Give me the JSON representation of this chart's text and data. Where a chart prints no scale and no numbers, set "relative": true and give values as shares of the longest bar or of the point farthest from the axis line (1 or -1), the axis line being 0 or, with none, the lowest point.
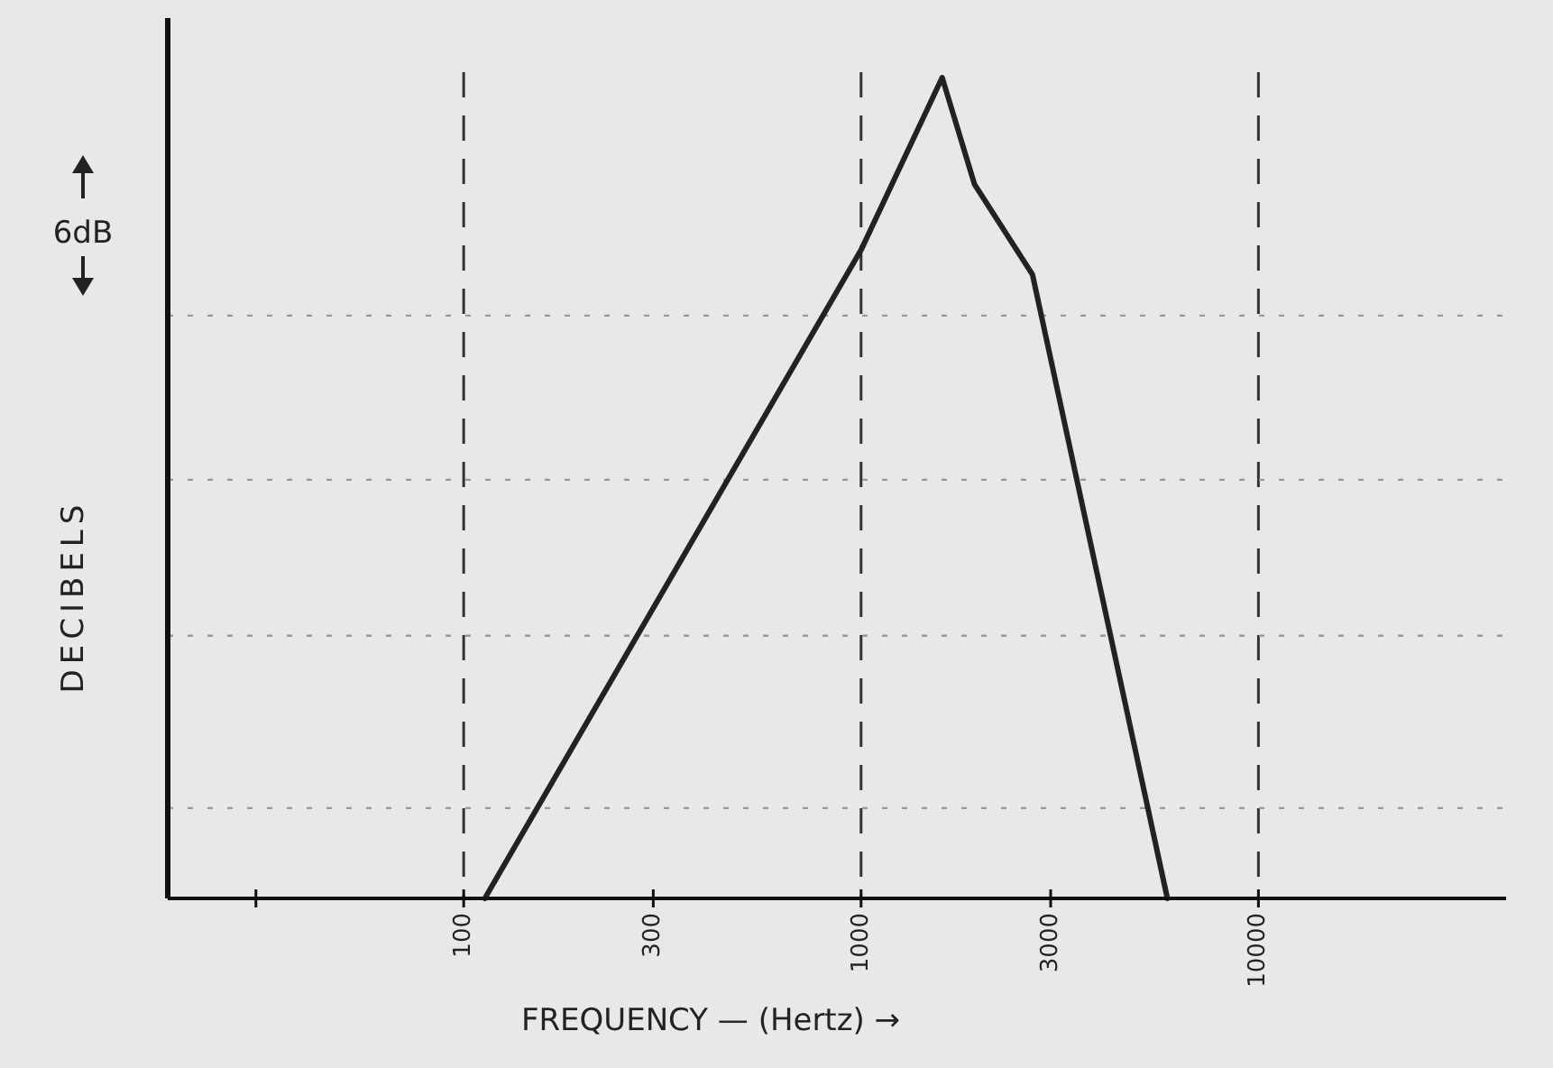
{
  "chart_data": {
    "type": "line",
    "relative": true,
    "log": "x",
    "xlabel": "FREQUENCY — (Hertz) →",
    "ylabel": "DECIBELS",
    "annotations": [
      "6dB"
    ],
    "xlim": [
      18,
      42000
    ],
    "xticks": [
      {
        "value": 30,
        "label": null
      },
      100,
      300,
      1000,
      3000,
      10000
    ],
    "x": [
      113,
      1000,
      1600,
      1930,
      2700,
      5900
    ],
    "series": [
      {
        "color": "#222222",
        "values": [
          0,
          0.79,
          1,
          0.87,
          0.76,
          0
        ]
      }
    ],
    "ref_lines": [
      {
        "axis": "x",
        "value": 100,
        "line_style": "dashed",
        "color": "#333333"
      },
      {
        "axis": "x",
        "value": 1000,
        "line_style": "dashed",
        "color": "#333333"
      },
      {
        "axis": "x",
        "value": 10000,
        "line_style": "dashed",
        "color": "#333333"
      },
      {
        "axis": "y",
        "value": 0.71,
        "line_style": "dotted",
        "color": "#999999"
      },
      {
        "axis": "y",
        "value": 0.51,
        "line_style": "dotted",
        "color": "#999999"
      },
      {
        "axis": "y",
        "value": 0.32,
        "line_style": "dotted",
        "color": "#999999"
      },
      {
        "axis": "y",
        "value": 0.11,
        "line_style": "dotted",
        "color": "#999999"
      }
    ],
    "marker": "none",
    "line_style": "solid"
  }
}
